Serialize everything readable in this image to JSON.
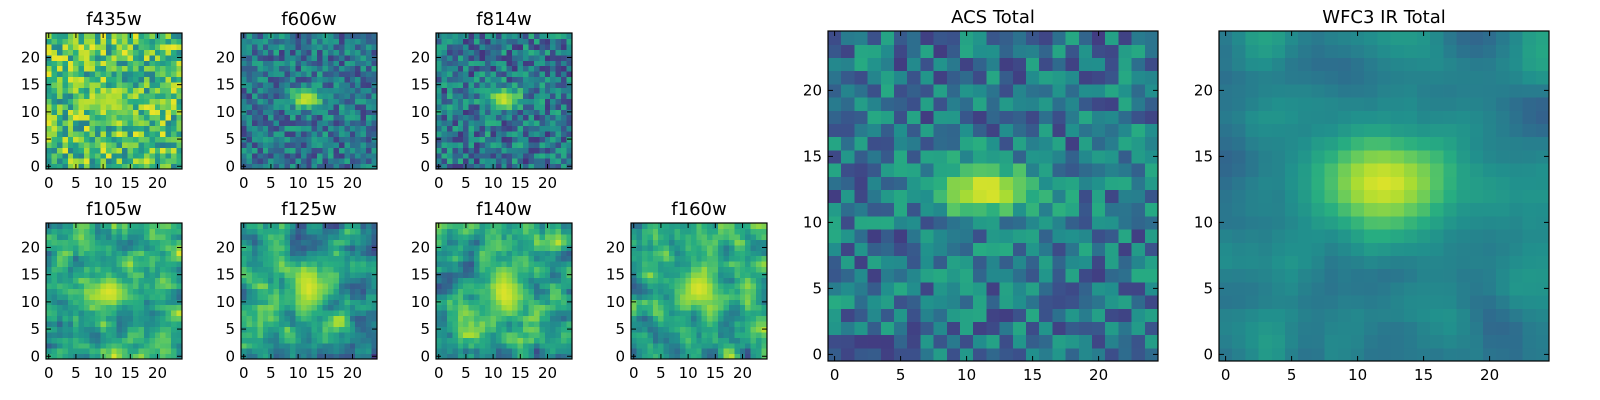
{
  "chart_data": [
    {
      "type": "heatmap",
      "title": "f435w",
      "xticks": [
        0,
        5,
        10,
        15,
        20
      ],
      "yticks": [
        0,
        5,
        10,
        15,
        20
      ],
      "xlim": [
        -0.5,
        24.5
      ],
      "ylim": [
        -0.5,
        24.5
      ],
      "grid": false,
      "colormap": "viridis",
      "grid_size": 25,
      "source_center": [
        11,
        12
      ],
      "source_extent": [
        3.0,
        1.6
      ],
      "peak": 0.9,
      "background": 0.7,
      "noise": 0.28,
      "smooth": 0,
      "seed": 11
    },
    {
      "type": "heatmap",
      "title": "f606w",
      "xticks": [
        0,
        5,
        10,
        15,
        20
      ],
      "yticks": [
        0,
        5,
        10,
        15,
        20
      ],
      "xlim": [
        -0.5,
        24.5
      ],
      "ylim": [
        -0.5,
        24.5
      ],
      "grid": false,
      "colormap": "viridis",
      "grid_size": 25,
      "source_center": [
        11.5,
        12.5
      ],
      "source_extent": [
        2.2,
        1.3
      ],
      "peak": 0.95,
      "background": 0.4,
      "noise": 0.22,
      "smooth": 0,
      "seed": 23
    },
    {
      "type": "heatmap",
      "title": "f814w",
      "xticks": [
        0,
        5,
        10,
        15,
        20
      ],
      "yticks": [
        0,
        5,
        10,
        15,
        20
      ],
      "xlim": [
        -0.5,
        24.5
      ],
      "ylim": [
        -0.5,
        24.5
      ],
      "grid": false,
      "colormap": "viridis",
      "grid_size": 25,
      "source_center": [
        12,
        12.5
      ],
      "source_extent": [
        2.2,
        1.3
      ],
      "peak": 0.95,
      "background": 0.4,
      "noise": 0.25,
      "smooth": 0,
      "seed": 37
    },
    {
      "type": "heatmap",
      "title": "f105w",
      "xticks": [
        0,
        5,
        10,
        15,
        20
      ],
      "yticks": [
        0,
        5,
        10,
        15,
        20
      ],
      "xlim": [
        -0.5,
        24.5
      ],
      "ylim": [
        -0.5,
        24.5
      ],
      "grid": false,
      "colormap": "viridis",
      "grid_size": 25,
      "source_center": [
        11,
        12
      ],
      "source_extent": [
        2.6,
        2.2
      ],
      "peak": 0.95,
      "background": 0.6,
      "noise": 0.3,
      "smooth": 1,
      "seed": 41
    },
    {
      "type": "heatmap",
      "title": "f125w",
      "xticks": [
        0,
        5,
        10,
        15,
        20
      ],
      "yticks": [
        0,
        5,
        10,
        15,
        20
      ],
      "xlim": [
        -0.5,
        24.5
      ],
      "ylim": [
        -0.5,
        24.5
      ],
      "grid": false,
      "colormap": "viridis",
      "grid_size": 25,
      "source_center": [
        12,
        12.5
      ],
      "source_extent": [
        2.4,
        3.0
      ],
      "peak": 0.95,
      "background": 0.55,
      "noise": 0.3,
      "smooth": 1,
      "seed": 53
    },
    {
      "type": "heatmap",
      "title": "f140w",
      "xticks": [
        0,
        5,
        10,
        15,
        20
      ],
      "yticks": [
        0,
        5,
        10,
        15,
        20
      ],
      "xlim": [
        -0.5,
        24.5
      ],
      "ylim": [
        -0.5,
        24.5
      ],
      "grid": false,
      "colormap": "viridis",
      "grid_size": 25,
      "source_center": [
        12,
        12
      ],
      "source_extent": [
        2.2,
        3.5
      ],
      "peak": 0.95,
      "background": 0.6,
      "noise": 0.32,
      "smooth": 1,
      "seed": 67
    },
    {
      "type": "heatmap",
      "title": "f160w",
      "xticks": [
        0,
        5,
        10,
        15,
        20
      ],
      "yticks": [
        0,
        5,
        10,
        15,
        20
      ],
      "xlim": [
        -0.5,
        24.5
      ],
      "ylim": [
        -0.5,
        24.5
      ],
      "grid": false,
      "colormap": "viridis",
      "grid_size": 25,
      "source_center": [
        12,
        12.5
      ],
      "source_extent": [
        3.0,
        2.6
      ],
      "peak": 0.95,
      "background": 0.6,
      "noise": 0.3,
      "smooth": 1,
      "seed": 79
    },
    {
      "type": "heatmap",
      "title": "ACS Total",
      "xticks": [
        0,
        5,
        10,
        15,
        20
      ],
      "yticks": [
        0,
        5,
        10,
        15,
        20
      ],
      "xlim": [
        -0.5,
        24.5
      ],
      "ylim": [
        -0.5,
        24.5
      ],
      "grid": false,
      "colormap": "viridis",
      "grid_size": 25,
      "source_center": [
        11.5,
        12.5
      ],
      "source_extent": [
        2.8,
        1.4
      ],
      "peak": 0.97,
      "background": 0.4,
      "noise": 0.22,
      "smooth": 0,
      "seed": 97
    },
    {
      "type": "heatmap",
      "title": "WFC3 IR Total",
      "xticks": [
        0,
        5,
        10,
        15,
        20
      ],
      "yticks": [
        0,
        5,
        10,
        15,
        20
      ],
      "xlim": [
        -0.5,
        24.5
      ],
      "ylim": [
        -0.5,
        24.5
      ],
      "grid": false,
      "colormap": "viridis",
      "grid_size": 25,
      "source_center": [
        12,
        13
      ],
      "source_extent": [
        3.5,
        2.5
      ],
      "peak": 0.95,
      "background": 0.45,
      "noise": 0.18,
      "smooth": 2,
      "seed": 113
    }
  ]
}
